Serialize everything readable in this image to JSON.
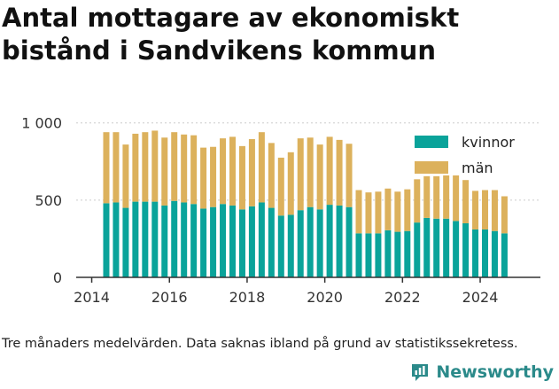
{
  "title": "Antal mottagare av ekonomiskt bistånd i Sandvikens kommun",
  "footnote": "Tre månaders medelvärden. Data saknas ibland på grund av statistikssekretess.",
  "brand": "Newsworthy",
  "colors": {
    "kvinnor": "#0aa39a",
    "man": "#dcb15c",
    "axis": "#333333",
    "grid": "#cccccc",
    "brand": "#2b8a8a"
  },
  "chart_data": {
    "type": "bar",
    "stacked": true,
    "x_axis": {
      "range": [
        2013.6,
        2025.55
      ],
      "ticks": [
        2014,
        2016,
        2018,
        2020,
        2022,
        2024
      ],
      "tick_labels": [
        "2014",
        "2016",
        "2018",
        "2020",
        "2022",
        "2024"
      ]
    },
    "y_axis": {
      "range": [
        0,
        1050
      ],
      "ticks": [
        0,
        500,
        1000
      ],
      "tick_labels": [
        "0",
        "500",
        "1 000"
      ]
    },
    "grid": "horizontal",
    "legend": {
      "placement": "top-right"
    },
    "x": [
      2014.375,
      2014.625,
      2014.875,
      2015.125,
      2015.375,
      2015.625,
      2015.875,
      2016.125,
      2016.375,
      2016.625,
      2016.875,
      2017.125,
      2017.375,
      2017.625,
      2017.875,
      2018.125,
      2018.375,
      2018.625,
      2018.875,
      2019.125,
      2019.375,
      2019.625,
      2019.875,
      2020.125,
      2020.375,
      2020.625,
      2020.875,
      2021.125,
      2021.375,
      2021.625,
      2021.875,
      2022.125,
      2022.375,
      2022.625,
      2022.875,
      2023.125,
      2023.375,
      2023.625,
      2023.875,
      2024.125,
      2024.375,
      2024.625
    ],
    "series": [
      {
        "name": "kvinnor",
        "color": "#0aa39a",
        "values": [
          480,
          485,
          450,
          490,
          490,
          490,
          465,
          495,
          485,
          475,
          445,
          455,
          475,
          465,
          440,
          460,
          485,
          450,
          400,
          405,
          435,
          455,
          440,
          470,
          465,
          455,
          285,
          285,
          285,
          305,
          295,
          300,
          355,
          385,
          380,
          380,
          365,
          350,
          310,
          310,
          300,
          285
        ]
      },
      {
        "name": "män",
        "color": "#dcb15c",
        "values": [
          460,
          455,
          410,
          440,
          450,
          460,
          440,
          445,
          440,
          445,
          395,
          390,
          425,
          445,
          410,
          435,
          455,
          420,
          375,
          405,
          465,
          450,
          420,
          440,
          425,
          410,
          280,
          265,
          270,
          270,
          260,
          270,
          280,
          270,
          275,
          280,
          295,
          280,
          250,
          255,
          265,
          240
        ]
      }
    ]
  }
}
